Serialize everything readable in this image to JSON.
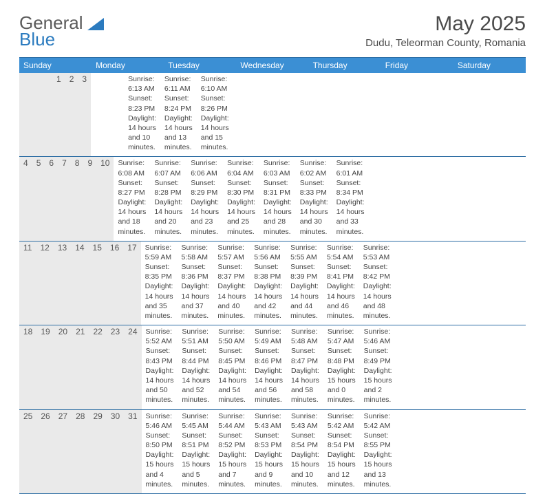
{
  "logo": {
    "part1": "General",
    "part2": "Blue"
  },
  "title": "May 2025",
  "location": "Dudu, Teleorman County, Romania",
  "colors": {
    "header_bg": "#3b8fd4",
    "header_text": "#ffffff",
    "daynum_bg": "#eaeaea",
    "rule": "#2b6ca3",
    "text": "#444444"
  },
  "weekdays": [
    "Sunday",
    "Monday",
    "Tuesday",
    "Wednesday",
    "Thursday",
    "Friday",
    "Saturday"
  ],
  "weeks": [
    [
      null,
      null,
      null,
      null,
      {
        "n": "1",
        "sr": "Sunrise: 6:13 AM",
        "ss": "Sunset: 8:23 PM",
        "d1": "Daylight: 14 hours",
        "d2": "and 10 minutes."
      },
      {
        "n": "2",
        "sr": "Sunrise: 6:11 AM",
        "ss": "Sunset: 8:24 PM",
        "d1": "Daylight: 14 hours",
        "d2": "and 13 minutes."
      },
      {
        "n": "3",
        "sr": "Sunrise: 6:10 AM",
        "ss": "Sunset: 8:26 PM",
        "d1": "Daylight: 14 hours",
        "d2": "and 15 minutes."
      }
    ],
    [
      {
        "n": "4",
        "sr": "Sunrise: 6:08 AM",
        "ss": "Sunset: 8:27 PM",
        "d1": "Daylight: 14 hours",
        "d2": "and 18 minutes."
      },
      {
        "n": "5",
        "sr": "Sunrise: 6:07 AM",
        "ss": "Sunset: 8:28 PM",
        "d1": "Daylight: 14 hours",
        "d2": "and 20 minutes."
      },
      {
        "n": "6",
        "sr": "Sunrise: 6:06 AM",
        "ss": "Sunset: 8:29 PM",
        "d1": "Daylight: 14 hours",
        "d2": "and 23 minutes."
      },
      {
        "n": "7",
        "sr": "Sunrise: 6:04 AM",
        "ss": "Sunset: 8:30 PM",
        "d1": "Daylight: 14 hours",
        "d2": "and 25 minutes."
      },
      {
        "n": "8",
        "sr": "Sunrise: 6:03 AM",
        "ss": "Sunset: 8:31 PM",
        "d1": "Daylight: 14 hours",
        "d2": "and 28 minutes."
      },
      {
        "n": "9",
        "sr": "Sunrise: 6:02 AM",
        "ss": "Sunset: 8:33 PM",
        "d1": "Daylight: 14 hours",
        "d2": "and 30 minutes."
      },
      {
        "n": "10",
        "sr": "Sunrise: 6:01 AM",
        "ss": "Sunset: 8:34 PM",
        "d1": "Daylight: 14 hours",
        "d2": "and 33 minutes."
      }
    ],
    [
      {
        "n": "11",
        "sr": "Sunrise: 5:59 AM",
        "ss": "Sunset: 8:35 PM",
        "d1": "Daylight: 14 hours",
        "d2": "and 35 minutes."
      },
      {
        "n": "12",
        "sr": "Sunrise: 5:58 AM",
        "ss": "Sunset: 8:36 PM",
        "d1": "Daylight: 14 hours",
        "d2": "and 37 minutes."
      },
      {
        "n": "13",
        "sr": "Sunrise: 5:57 AM",
        "ss": "Sunset: 8:37 PM",
        "d1": "Daylight: 14 hours",
        "d2": "and 40 minutes."
      },
      {
        "n": "14",
        "sr": "Sunrise: 5:56 AM",
        "ss": "Sunset: 8:38 PM",
        "d1": "Daylight: 14 hours",
        "d2": "and 42 minutes."
      },
      {
        "n": "15",
        "sr": "Sunrise: 5:55 AM",
        "ss": "Sunset: 8:39 PM",
        "d1": "Daylight: 14 hours",
        "d2": "and 44 minutes."
      },
      {
        "n": "16",
        "sr": "Sunrise: 5:54 AM",
        "ss": "Sunset: 8:41 PM",
        "d1": "Daylight: 14 hours",
        "d2": "and 46 minutes."
      },
      {
        "n": "17",
        "sr": "Sunrise: 5:53 AM",
        "ss": "Sunset: 8:42 PM",
        "d1": "Daylight: 14 hours",
        "d2": "and 48 minutes."
      }
    ],
    [
      {
        "n": "18",
        "sr": "Sunrise: 5:52 AM",
        "ss": "Sunset: 8:43 PM",
        "d1": "Daylight: 14 hours",
        "d2": "and 50 minutes."
      },
      {
        "n": "19",
        "sr": "Sunrise: 5:51 AM",
        "ss": "Sunset: 8:44 PM",
        "d1": "Daylight: 14 hours",
        "d2": "and 52 minutes."
      },
      {
        "n": "20",
        "sr": "Sunrise: 5:50 AM",
        "ss": "Sunset: 8:45 PM",
        "d1": "Daylight: 14 hours",
        "d2": "and 54 minutes."
      },
      {
        "n": "21",
        "sr": "Sunrise: 5:49 AM",
        "ss": "Sunset: 8:46 PM",
        "d1": "Daylight: 14 hours",
        "d2": "and 56 minutes."
      },
      {
        "n": "22",
        "sr": "Sunrise: 5:48 AM",
        "ss": "Sunset: 8:47 PM",
        "d1": "Daylight: 14 hours",
        "d2": "and 58 minutes."
      },
      {
        "n": "23",
        "sr": "Sunrise: 5:47 AM",
        "ss": "Sunset: 8:48 PM",
        "d1": "Daylight: 15 hours",
        "d2": "and 0 minutes."
      },
      {
        "n": "24",
        "sr": "Sunrise: 5:46 AM",
        "ss": "Sunset: 8:49 PM",
        "d1": "Daylight: 15 hours",
        "d2": "and 2 minutes."
      }
    ],
    [
      {
        "n": "25",
        "sr": "Sunrise: 5:46 AM",
        "ss": "Sunset: 8:50 PM",
        "d1": "Daylight: 15 hours",
        "d2": "and 4 minutes."
      },
      {
        "n": "26",
        "sr": "Sunrise: 5:45 AM",
        "ss": "Sunset: 8:51 PM",
        "d1": "Daylight: 15 hours",
        "d2": "and 5 minutes."
      },
      {
        "n": "27",
        "sr": "Sunrise: 5:44 AM",
        "ss": "Sunset: 8:52 PM",
        "d1": "Daylight: 15 hours",
        "d2": "and 7 minutes."
      },
      {
        "n": "28",
        "sr": "Sunrise: 5:43 AM",
        "ss": "Sunset: 8:53 PM",
        "d1": "Daylight: 15 hours",
        "d2": "and 9 minutes."
      },
      {
        "n": "29",
        "sr": "Sunrise: 5:43 AM",
        "ss": "Sunset: 8:54 PM",
        "d1": "Daylight: 15 hours",
        "d2": "and 10 minutes."
      },
      {
        "n": "30",
        "sr": "Sunrise: 5:42 AM",
        "ss": "Sunset: 8:54 PM",
        "d1": "Daylight: 15 hours",
        "d2": "and 12 minutes."
      },
      {
        "n": "31",
        "sr": "Sunrise: 5:42 AM",
        "ss": "Sunset: 8:55 PM",
        "d1": "Daylight: 15 hours",
        "d2": "and 13 minutes."
      }
    ]
  ]
}
